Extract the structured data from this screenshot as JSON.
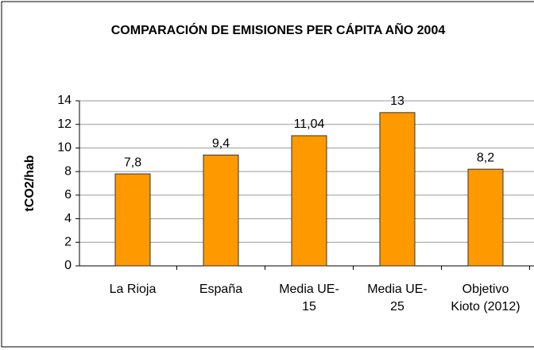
{
  "chart_data": {
    "type": "bar",
    "title": "COMPARACIÓN DE EMISIONES PER CÁPITA AÑO 2004",
    "ylabel": "tCO2/hab",
    "categories": [
      "La Rioja",
      "España",
      "Media UE-15",
      "Media UE-25",
      "Objetivo Kioto (2012)"
    ],
    "values": [
      7.8,
      9.4,
      11.04,
      13,
      8.2
    ],
    "value_labels": [
      "7,8",
      "9,4",
      "11,04",
      "13",
      "8,2"
    ],
    "color": "#ff9900",
    "ylim": [
      0,
      14
    ],
    "yticks": [
      0,
      2,
      4,
      6,
      8,
      10,
      12,
      14
    ],
    "grid": true
  }
}
